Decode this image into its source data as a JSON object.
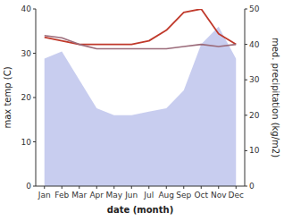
{
  "chart_data": {
    "type": "line",
    "xlabel": "date (month)",
    "ylabel": "max temp (C)",
    "y2label": "med. precipitation (kg/m2)",
    "categories": [
      "Jan",
      "Feb",
      "Mar",
      "Apr",
      "May",
      "Jun",
      "Jul",
      "Aug",
      "Sep",
      "Oct",
      "Nov",
      "Dec"
    ],
    "ylim": [
      0,
      40
    ],
    "yticks": [
      0,
      10,
      20,
      30,
      40
    ],
    "y2lim": [
      0,
      50
    ],
    "y2ticks": [
      0,
      10,
      20,
      30,
      40,
      50
    ],
    "grid": false,
    "series": [
      {
        "type": "area",
        "axis": "y2",
        "color": "#b0b8e8",
        "values": [
          36,
          38,
          30,
          22,
          20,
          20,
          21,
          22,
          27,
          40,
          45,
          36
        ]
      },
      {
        "type": "line",
        "axis": "y2",
        "color": "#c0392b",
        "values": [
          42,
          41,
          40,
          40,
          40,
          40,
          41,
          44,
          49,
          50,
          43,
          40
        ]
      },
      {
        "type": "line",
        "color": "#9b6b7a",
        "values": [
          34,
          33.5,
          32,
          31,
          31,
          31,
          31,
          31,
          31.5,
          32,
          31.5,
          32
        ]
      }
    ]
  }
}
